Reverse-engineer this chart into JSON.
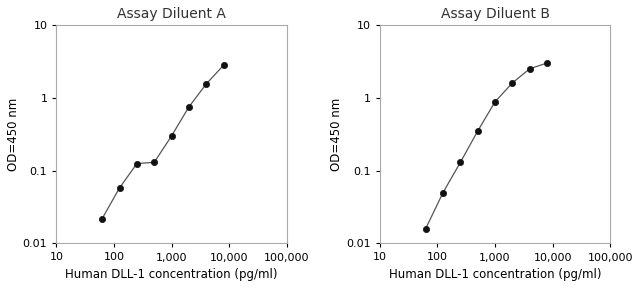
{
  "panel_A": {
    "title": "Assay Diluent A",
    "x": [
      62.5,
      125,
      250,
      500,
      1000,
      2000,
      4000,
      8000
    ],
    "y": [
      0.022,
      0.058,
      0.125,
      0.13,
      0.3,
      0.75,
      1.55,
      2.8
    ],
    "xlabel": "Human DLL-1 concentration (pg/ml)",
    "ylabel": "OD=450 nm",
    "xlim": [
      10,
      100000
    ],
    "ylim": [
      0.01,
      10
    ]
  },
  "panel_B": {
    "title": "Assay Diluent B",
    "x": [
      62.5,
      125,
      250,
      500,
      1000,
      2000,
      4000,
      8000
    ],
    "y": [
      0.016,
      0.05,
      0.13,
      0.35,
      0.88,
      1.6,
      2.5,
      3.0
    ],
    "xlabel": "Human DLL-1 concentration (pg/ml)",
    "ylabel": "OD=450 nm",
    "xlim": [
      10,
      100000
    ],
    "ylim": [
      0.01,
      10
    ]
  },
  "line_color": "#555555",
  "marker_color": "#111111",
  "title_color": "#333333",
  "label_color": "#000000",
  "tick_color": "#000000",
  "bg_color": "#ffffff",
  "plot_bg_color": "#ffffff",
  "spine_color": "#aaaaaa",
  "title_fontsize": 10,
  "label_fontsize": 8.5,
  "tick_fontsize": 8,
  "x_ticks": [
    10,
    100,
    1000,
    10000,
    100000
  ],
  "x_tick_labels": [
    "10",
    "100",
    "1,000",
    "10,000",
    "100,000"
  ],
  "y_ticks": [
    0.01,
    0.1,
    1,
    10
  ],
  "y_tick_labels": [
    "0.01",
    "0.1",
    "1",
    "10"
  ]
}
